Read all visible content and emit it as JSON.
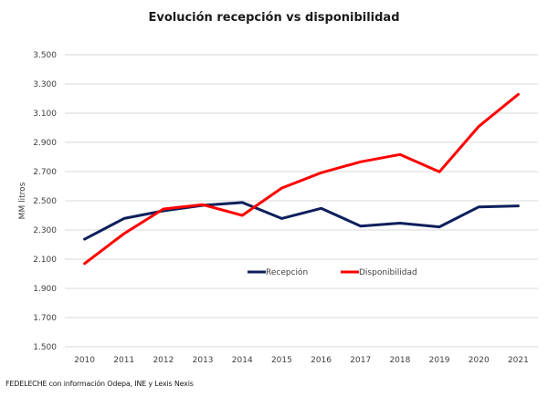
{
  "chart_data": {
    "type": "line",
    "title": "Evolución recepción vs disponibilidad",
    "xlabel": "",
    "ylabel": "MM litros",
    "x": [
      "2010",
      "2011",
      "2012",
      "2013",
      "2014",
      "2015",
      "2016",
      "2017",
      "2018",
      "2019",
      "2020",
      "2021"
    ],
    "series": [
      {
        "name": "Recepción",
        "color": "#0d1f5c",
        "values": [
          2237,
          2379,
          2431,
          2469,
          2488,
          2379,
          2448,
          2327,
          2347,
          2321,
          2458,
          2465
        ]
      },
      {
        "name": "Disponibilidad",
        "color": "#ff0000",
        "values": [
          2070,
          2275,
          2444,
          2473,
          2400,
          2587,
          2692,
          2767,
          2817,
          2698,
          3010,
          3229
        ]
      }
    ],
    "ylim": [
      1500,
      3500
    ],
    "yticks": [
      1500,
      1700,
      1900,
      2100,
      2300,
      2500,
      2700,
      2900,
      3100,
      3300,
      3500
    ],
    "ytick_labels": [
      "1.500",
      "1.700",
      "1.900",
      "2.100",
      "2.300",
      "2.500",
      "2.700",
      "2.900",
      "3.100",
      "3.300",
      "3.500"
    ],
    "grid": true,
    "gridline_color": "#d9d9d9",
    "legend_position": "inside-center"
  },
  "source_note": "FEDELECHE con información Odepa, INE y Lexis Nexis"
}
